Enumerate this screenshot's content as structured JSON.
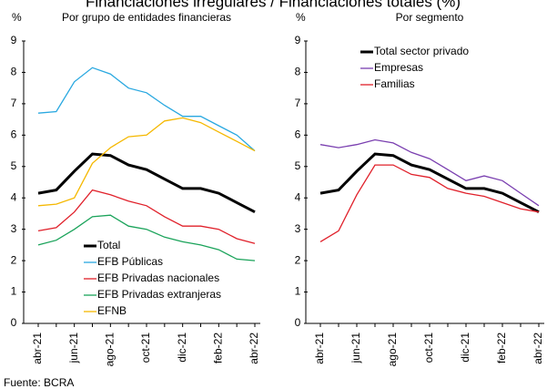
{
  "title": "Financiaciones irregulares / Financiaciones totales (%)",
  "source": "Fuente: BCRA",
  "chart_data": [
    {
      "type": "line",
      "title": "Por grupo de entidades financieras",
      "y_label": "%",
      "categories": [
        "abr-21",
        null,
        "jun-21",
        null,
        "ago-21",
        null,
        "oct-21",
        null,
        "dic-21",
        null,
        "feb-22",
        null,
        "abr-22"
      ],
      "ylim": [
        0,
        9
      ],
      "yticks": [
        0,
        1,
        2,
        3,
        4,
        5,
        6,
        7,
        8,
        9
      ],
      "legend": "lower left",
      "series": [
        {
          "name": "Total",
          "color": "#000000",
          "width": 3,
          "values": [
            4.15,
            4.25,
            4.85,
            5.4,
            5.35,
            5.05,
            4.9,
            4.6,
            4.3,
            4.3,
            4.15,
            3.85,
            3.55
          ]
        },
        {
          "name": "EFB Públicas",
          "color": "#29a8e0",
          "width": 1.3,
          "values": [
            6.7,
            6.75,
            7.7,
            8.15,
            7.95,
            7.5,
            7.35,
            6.95,
            6.6,
            6.6,
            6.3,
            6.0,
            5.5
          ]
        },
        {
          "name": "EFB Privadas nacionales",
          "color": "#e0202a",
          "width": 1.3,
          "values": [
            2.95,
            3.05,
            3.55,
            4.25,
            4.1,
            3.9,
            3.75,
            3.4,
            3.1,
            3.1,
            3.0,
            2.7,
            2.55
          ]
        },
        {
          "name": "EFB Privadas extranjeras",
          "color": "#1aa35a",
          "width": 1.3,
          "values": [
            2.5,
            2.65,
            3.0,
            3.4,
            3.45,
            3.1,
            3.0,
            2.75,
            2.6,
            2.5,
            2.35,
            2.05,
            2.0
          ]
        },
        {
          "name": "EFNB",
          "color": "#f5b800",
          "width": 1.3,
          "values": [
            3.75,
            3.8,
            4.0,
            5.1,
            5.6,
            5.95,
            6.0,
            6.45,
            6.55,
            6.4,
            6.1,
            5.8,
            5.5
          ]
        }
      ]
    },
    {
      "type": "line",
      "title": "Por segmento",
      "y_label": "%",
      "categories": [
        "abr-21",
        null,
        "jun-21",
        null,
        "ago-21",
        null,
        "oct-21",
        null,
        "dic-21",
        null,
        "feb-22",
        null,
        "abr-22"
      ],
      "ylim": [
        0,
        9
      ],
      "yticks": [
        0,
        1,
        2,
        3,
        4,
        5,
        6,
        7,
        8,
        9
      ],
      "legend": "upper left",
      "series": [
        {
          "name": "Total sector privado",
          "color": "#000000",
          "width": 3,
          "values": [
            4.15,
            4.25,
            4.85,
            5.4,
            5.35,
            5.05,
            4.9,
            4.6,
            4.3,
            4.3,
            4.15,
            3.85,
            3.55
          ]
        },
        {
          "name": "Empresas",
          "color": "#7a3fb0",
          "width": 1.3,
          "values": [
            5.7,
            5.6,
            5.7,
            5.85,
            5.75,
            5.45,
            5.25,
            4.9,
            4.55,
            4.7,
            4.55,
            4.15,
            3.75
          ]
        },
        {
          "name": "Familias",
          "color": "#e0202a",
          "width": 1.3,
          "values": [
            2.6,
            2.95,
            4.1,
            5.05,
            5.05,
            4.75,
            4.65,
            4.3,
            4.15,
            4.05,
            3.85,
            3.65,
            3.55
          ]
        }
      ]
    }
  ]
}
